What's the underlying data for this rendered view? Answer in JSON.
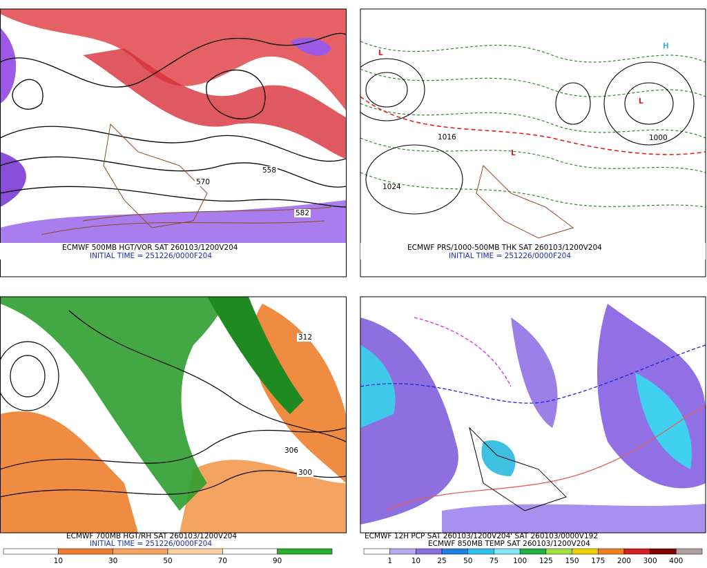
{
  "panels": [
    {
      "title": "ECMWF 500MB HGT/VOR SAT 260103/1200V204",
      "subtitle": "INITIAL TIME = 251226/0000F204",
      "labels": [
        "558",
        "570",
        "582"
      ]
    },
    {
      "title": "ECMWF PRS/1000-500MB THK SAT 260103/1200V204",
      "subtitle": "INITIAL TIME = 251226/0000F204",
      "labels": [
        "1024",
        "1016",
        "1000"
      ]
    },
    {
      "title": "ECMWF 700MB HGT/RH SAT 260103/1200V204",
      "subtitle": "INITIAL TIME = 251226/0000F204",
      "labels": [
        "312",
        "306",
        "300"
      ],
      "colorbar": [
        10,
        30,
        50,
        70,
        90
      ]
    },
    {
      "title": "ECMWF 12H PCP SAT 260103/1200V204' SAT 260103/0000V192",
      "subtitle": "ECMWF 850MB TEMP SAT 260103/1200V204",
      "colorbar": [
        1,
        10,
        25,
        50,
        75,
        100,
        125,
        150,
        175,
        200,
        300,
        400
      ]
    }
  ]
}
